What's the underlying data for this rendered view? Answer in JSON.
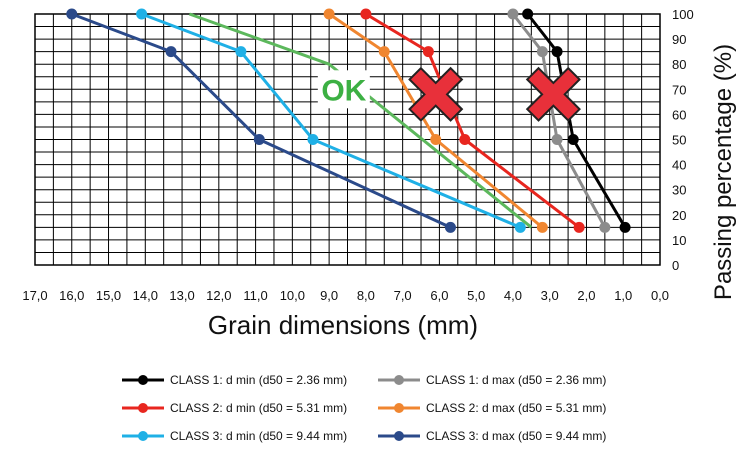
{
  "chart_data": {
    "type": "line",
    "xlabel": "Grain dimensions (mm)",
    "ylabel": "Passing percentage (%)",
    "xlim": [
      17.0,
      0.0
    ],
    "ylim": [
      0,
      100
    ],
    "x_reversed": true,
    "x_ticks": [
      "17,0",
      "16,0",
      "15,0",
      "14,0",
      "13,0",
      "12,0",
      "11,0",
      "10,0",
      "9,0",
      "8,0",
      "7,0",
      "6,0",
      "5,0",
      "4,0",
      "3,0",
      "2,0",
      "1,0",
      "0,0"
    ],
    "y_ticks": [
      "0",
      "10",
      "20",
      "30",
      "40",
      "50",
      "60",
      "70",
      "80",
      "90",
      "100"
    ],
    "grid": true,
    "series": [
      {
        "name": "CLASS 1: d min (d50 = 2.36 mm)",
        "color": "#000000",
        "markers": true,
        "points": [
          [
            3.6,
            100
          ],
          [
            2.8,
            85
          ],
          [
            2.36,
            50
          ],
          [
            0.95,
            15
          ]
        ]
      },
      {
        "name": "CLASS 1: d max (d50 = 2.36 mm)",
        "color": "#8c8c8c",
        "markers": true,
        "points": [
          [
            4.0,
            100
          ],
          [
            3.2,
            85
          ],
          [
            2.8,
            50
          ],
          [
            1.5,
            15
          ]
        ]
      },
      {
        "name": "CLASS 2: d min (d50 = 5.31 mm)",
        "color": "#e8261f",
        "markers": true,
        "points": [
          [
            8.0,
            100
          ],
          [
            6.3,
            85
          ],
          [
            5.31,
            50
          ],
          [
            2.2,
            15
          ]
        ]
      },
      {
        "name": "CLASS 2: d max (d50 = 5.31 mm)",
        "color": "#f08630",
        "markers": true,
        "points": [
          [
            9.0,
            100
          ],
          [
            7.5,
            85
          ],
          [
            6.1,
            50
          ],
          [
            3.2,
            15
          ]
        ]
      },
      {
        "name": "CLASS 3: d min (d50 = 9.44 mm)",
        "color": "#1fb0e6",
        "markers": true,
        "points": [
          [
            14.1,
            100
          ],
          [
            11.4,
            85
          ],
          [
            9.44,
            50
          ],
          [
            3.8,
            15
          ]
        ]
      },
      {
        "name": "CLASS 3: d max (d50 = 9.44 mm)",
        "color": "#2b4a8a",
        "markers": true,
        "points": [
          [
            16.0,
            100
          ],
          [
            13.3,
            85
          ],
          [
            10.9,
            50
          ],
          [
            5.7,
            15
          ]
        ]
      },
      {
        "name": "",
        "color": "#5cb85c",
        "markers": false,
        "points": [
          [
            12.8,
            100
          ],
          [
            9.0,
            80
          ],
          [
            3.5,
            15
          ]
        ]
      }
    ],
    "annotations": [
      {
        "text": "OK",
        "x": 8.6,
        "y": 70,
        "color": "#3cb043",
        "kind": "label"
      },
      {
        "text": "✖",
        "x": 6.1,
        "y": 68,
        "color": "#e8303a",
        "kind": "cross"
      },
      {
        "text": "✖",
        "x": 2.9,
        "y": 68,
        "color": "#e8303a",
        "kind": "cross"
      }
    ]
  }
}
